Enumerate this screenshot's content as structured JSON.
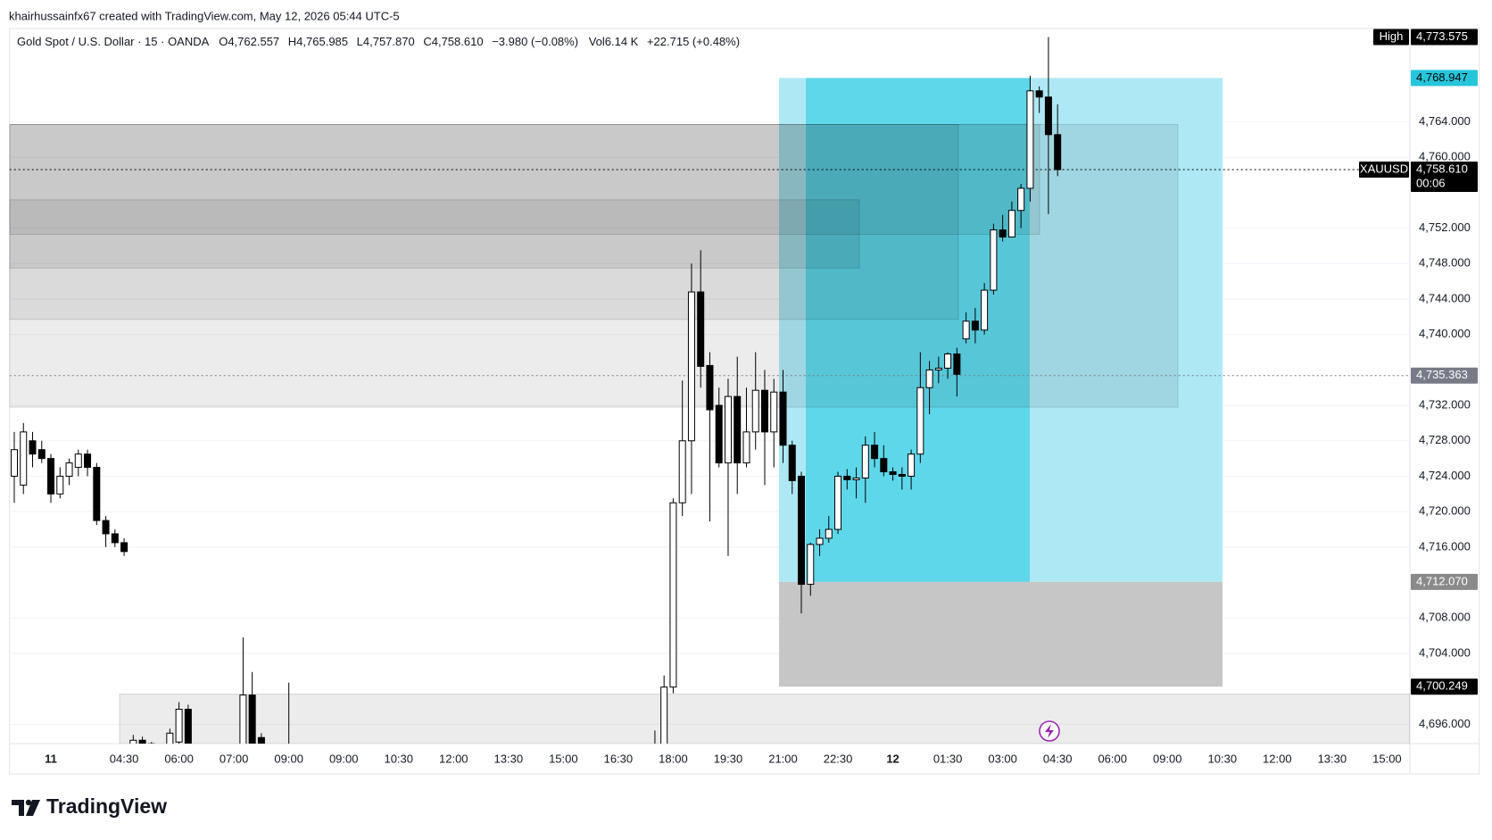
{
  "chart_data": {
    "type": "candlestick",
    "subtitle": "khairhussainfx67 created with TradingView.com, May 12, 2026 05:44 UTC-5",
    "title": "Gold Spot / U.S. Dollar · 15 · OANDA",
    "legend_values": [
      "O4,762.557",
      "H4,765.985",
      "L4,757.870",
      "C4,758.610",
      "−3.980 (−0.08%)",
      "Vol6.14 K",
      "+22.715 (+0.48%)"
    ],
    "branding": "TradingView",
    "up_color": "#ffffff",
    "down_color": "#000000",
    "wick_color": "#000000",
    "grid": true,
    "ylim": [
      4693.82,
      4774.53
    ],
    "yticks": [
      {
        "value": 4764,
        "label": "4,764.000"
      },
      {
        "value": 4760,
        "label": "4,760.000"
      },
      {
        "value": 4752,
        "label": "4,752.000"
      },
      {
        "value": 4748,
        "label": "4,748.000"
      },
      {
        "value": 4744,
        "label": "4,744.000"
      },
      {
        "value": 4740,
        "label": "4,740.000"
      },
      {
        "value": 4732,
        "label": "4,732.000"
      },
      {
        "value": 4728,
        "label": "4,728.000"
      },
      {
        "value": 4724,
        "label": "4,724.000"
      },
      {
        "value": 4720,
        "label": "4,720.000"
      },
      {
        "value": 4716,
        "label": "4,716.000"
      },
      {
        "value": 4708,
        "label": "4,708.000"
      },
      {
        "value": 4704,
        "label": "4,704.000"
      },
      {
        "value": 4696,
        "label": "4,696.000"
      }
    ],
    "categories": [
      null,
      null,
      null,
      null,
      "11",
      null,
      null,
      null,
      null,
      null,
      null,
      null,
      "04:30",
      null,
      null,
      null,
      null,
      null,
      "06:00",
      null,
      null,
      null,
      null,
      null,
      "07:00",
      null,
      null,
      null,
      null,
      null,
      "09:00",
      null,
      null,
      null,
      null,
      null,
      "09:00",
      null,
      null,
      null,
      null,
      null,
      "10:30",
      null,
      null,
      null,
      null,
      null,
      "12:00",
      null,
      null,
      null,
      null,
      null,
      "13:30",
      null,
      null,
      null,
      null,
      null,
      "15:00",
      null,
      null,
      null,
      null,
      null,
      "16:30",
      null,
      null,
      null,
      null,
      null,
      "18:00",
      null,
      null,
      null,
      null,
      null,
      "19:30",
      null,
      null,
      null,
      null,
      null,
      "21:00",
      null,
      null,
      null,
      null,
      null,
      "22:30",
      null,
      null,
      null,
      null,
      null,
      "12",
      null,
      null,
      null,
      null,
      null,
      "01:30",
      null,
      null,
      null,
      null,
      null,
      "03:00",
      null,
      null,
      null,
      null,
      null,
      "04:30",
      null,
      null,
      null,
      null,
      null,
      "06:00",
      null,
      null,
      null,
      null,
      null,
      "09:00",
      null,
      null,
      null,
      null,
      null,
      "10:30",
      null,
      null,
      null,
      null,
      null,
      "12:00",
      null,
      null,
      null,
      null,
      null,
      "13:30",
      null,
      null,
      null,
      null,
      null,
      "15:00",
      null,
      null
    ],
    "open": [
      4724,
      4723,
      4728,
      4727,
      4726,
      4722,
      4724,
      4725,
      4726.5,
      4725,
      4719,
      4717.5,
      4716.5,
      4693.5,
      4694.2,
      4693.5,
      null,
      4693,
      4694,
      4697.7,
      null,
      null,
      null,
      null,
      null,
      4693,
      4699.3,
      4694.5,
      null,
      null,
      4693,
      null,
      null,
      null,
      null,
      null,
      null,
      null,
      null,
      null,
      null,
      null,
      null,
      null,
      null,
      null,
      null,
      null,
      null,
      null,
      null,
      null,
      null,
      null,
      null,
      null,
      null,
      null,
      null,
      null,
      null,
      null,
      null,
      null,
      null,
      null,
      null,
      null,
      null,
      null,
      4693,
      4693,
      4700.2,
      4721,
      4728,
      4744.8,
      4736.5,
      4732,
      4725.5,
      4733,
      4725.5,
      4729,
      4733.7,
      4729,
      4733.5,
      4727.5,
      4724,
      4711.8,
      4716.3,
      4717,
      4718,
      4724,
      4723.6,
      4723.8,
      4727.5,
      4726,
      4724.5,
      4724.2,
      4724,
      4726.5,
      4734,
      4736,
      4736.2,
      4737.8,
      4739.5,
      4741.5,
      4740.5,
      4745,
      4751.8,
      4751,
      4754,
      4756.5,
      4767.5,
      4766.8,
      4762.557,
      null,
      null,
      null,
      null,
      null,
      null,
      null,
      null,
      null,
      null,
      null,
      null,
      null,
      null,
      null,
      null,
      null,
      null,
      null,
      null,
      null,
      null,
      null,
      null,
      null,
      null,
      null,
      null,
      null,
      null,
      null,
      null,
      null,
      null,
      null,
      null,
      null,
      null
    ],
    "high": [
      4729,
      4730,
      4729,
      4728,
      4726.5,
      4725,
      4726,
      4727,
      4727,
      4725.5,
      4719.5,
      4718,
      4717,
      4694.8,
      4694.6,
      4694,
      null,
      4695.5,
      4698.5,
      4698.2,
      null,
      null,
      null,
      null,
      null,
      4705.8,
      4701.9,
      4695,
      null,
      null,
      4700.7,
      null,
      null,
      null,
      null,
      null,
      null,
      null,
      null,
      null,
      null,
      null,
      null,
      null,
      null,
      null,
      null,
      null,
      null,
      null,
      null,
      null,
      null,
      null,
      null,
      null,
      null,
      null,
      null,
      null,
      null,
      null,
      null,
      null,
      null,
      null,
      null,
      null,
      null,
      null,
      4695.3,
      4701.5,
      4721.5,
      4734.8,
      4748,
      4749.5,
      4738,
      4734,
      4735,
      4737.5,
      4734,
      4738,
      4736,
      4735,
      4736,
      4728,
      4724.5,
      4716.5,
      4718,
      4719.5,
      4724.5,
      4724.8,
      4725,
      4728.5,
      4729,
      4727.5,
      4725,
      4725,
      4727,
      4738,
      4737,
      4737.5,
      4738,
      4738.5,
      4742.5,
      4743,
      4745.8,
      4752.5,
      4753.5,
      4755,
      4757,
      4769.2,
      4768,
      4773.575,
      4765.985,
      null,
      null,
      null,
      null,
      null,
      null,
      null,
      null,
      null,
      null,
      null,
      null,
      null,
      null,
      null,
      null,
      null,
      null,
      null,
      null,
      null,
      null,
      null,
      null,
      null,
      null,
      null,
      null,
      null,
      null,
      null,
      null,
      null,
      null,
      null,
      null,
      null,
      null
    ],
    "low": [
      4721,
      4722,
      4725,
      4725.5,
      4721,
      4721.5,
      4723,
      4724,
      4724,
      4718.5,
      4716,
      4716,
      4715,
      4692,
      4692,
      4692,
      null,
      4692,
      4692,
      4692,
      null,
      null,
      null,
      null,
      null,
      4692,
      4692,
      4692,
      null,
      null,
      4692,
      null,
      null,
      null,
      null,
      null,
      null,
      null,
      null,
      null,
      null,
      null,
      null,
      null,
      null,
      null,
      null,
      null,
      null,
      null,
      null,
      null,
      null,
      null,
      null,
      null,
      null,
      null,
      null,
      null,
      null,
      null,
      null,
      null,
      null,
      null,
      null,
      null,
      null,
      null,
      4692,
      4692,
      4699.5,
      4719.5,
      4722,
      4734,
      4718.9,
      4725,
      4715,
      4722,
      4725,
      4727,
      4723,
      4725,
      4725.5,
      4722,
      4708.5,
      4710.5,
      4715,
      4716.5,
      4717.5,
      4722.5,
      4721.5,
      4721,
      4725,
      4724,
      4723.5,
      4722.5,
      4722.5,
      4725.5,
      4731,
      4734.5,
      4735,
      4733,
      4739,
      4739,
      4740,
      4744.5,
      4750.5,
      4751,
      4752,
      4755,
      4765,
      4753.6,
      4757.87,
      null,
      null,
      null,
      null,
      null,
      null,
      null,
      null,
      null,
      null,
      null,
      null,
      null,
      null,
      null,
      null,
      null,
      null,
      null,
      null,
      null,
      null,
      null,
      null,
      null,
      null,
      null,
      null,
      null,
      null,
      null,
      null,
      null,
      null,
      null,
      null,
      null,
      null
    ],
    "close": [
      4727,
      4729,
      4726.5,
      4726,
      4722,
      4724,
      4725.5,
      4726.5,
      4725,
      4719,
      4717.5,
      4716.5,
      4715.5,
      4694.2,
      4693.5,
      4693.8,
      null,
      4695,
      4697.7,
      4693,
      null,
      null,
      null,
      null,
      null,
      4699.3,
      4693,
      4693,
      null,
      null,
      4693.2,
      null,
      null,
      null,
      null,
      null,
      null,
      null,
      null,
      null,
      null,
      null,
      null,
      null,
      null,
      null,
      null,
      null,
      null,
      null,
      null,
      null,
      null,
      null,
      null,
      null,
      null,
      null,
      null,
      null,
      null,
      null,
      null,
      null,
      null,
      null,
      null,
      null,
      null,
      null,
      4693.5,
      4700.2,
      4721,
      4728,
      4744.8,
      4736.4,
      4731.5,
      4725.5,
      4733,
      4725.5,
      4729,
      4733.7,
      4729,
      4733.5,
      4727.5,
      4723.5,
      4711.8,
      4716.3,
      4717,
      4718,
      4724,
      4723.6,
      4723.8,
      4727.5,
      4726,
      4724.5,
      4724.2,
      4724,
      4726.5,
      4734,
      4736,
      4736.2,
      4737.8,
      4735.5,
      4741.5,
      4740.5,
      4745,
      4751.8,
      4751,
      4754,
      4756.5,
      4767.5,
      4766.8,
      4762.557,
      4758.61,
      null,
      null,
      null,
      null,
      null,
      null,
      null,
      null,
      null,
      null,
      null,
      null,
      null,
      null,
      null,
      null,
      null,
      null,
      null,
      null,
      null,
      null,
      null,
      null,
      null,
      null,
      null,
      null,
      null,
      null,
      null,
      null,
      null,
      null,
      null,
      null,
      null,
      null
    ],
    "zones": [
      {
        "top": 4763.7,
        "bottom": 4731.8
      },
      {
        "top": 4763.7,
        "bottom": 4741.7
      },
      {
        "top": 4763.7,
        "bottom": 4751.3
      },
      {
        "top": 4755.2,
        "bottom": 4747.5
      },
      {
        "top": 4699.4,
        "bottom": 4692
      }
    ],
    "price_labels": [
      {
        "text": "High",
        "value": 4773.575,
        "label": "4,773.575",
        "color": "#000000",
        "text_color": "#ffffff"
      },
      {
        "value": 4768.947,
        "label": "4,768.947",
        "color": "#26c6da",
        "text_color": "#000000"
      },
      {
        "text": "XAUUSD",
        "value": 4758.61,
        "label": "4,758.610",
        "countdown": "00:06",
        "color": "#000000",
        "text_color": "#ffffff",
        "line": true
      },
      {
        "value": 4735.363,
        "label": "4,735.363",
        "color": "#787b86",
        "text_color": "#ffffff",
        "line": true
      },
      {
        "value": 4712.07,
        "label": "4,712.070",
        "color": "#8a8a8a",
        "text_color": "#ffffff"
      },
      {
        "value": 4700.249,
        "label": "4,700.249",
        "color": "#000000",
        "text_color": "#ffffff"
      }
    ]
  }
}
